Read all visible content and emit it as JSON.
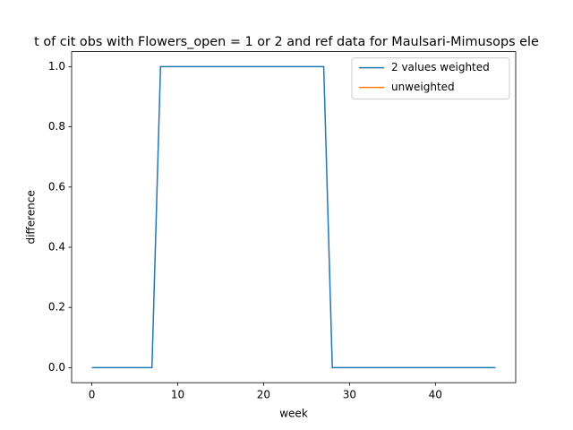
{
  "chart_data": {
    "type": "line",
    "title": "t of cit obs with Flowers_open = 1 or 2 and ref data for Maulsari-Mimusops ele",
    "x_label": "week",
    "y_label": "difference",
    "x": [
      0,
      1,
      2,
      3,
      4,
      5,
      6,
      7,
      8,
      9,
      10,
      11,
      12,
      13,
      14,
      15,
      16,
      17,
      18,
      19,
      20,
      21,
      22,
      23,
      24,
      25,
      26,
      27,
      28,
      29,
      30,
      31,
      32,
      33,
      34,
      35,
      36,
      37,
      38,
      39,
      40,
      41,
      42,
      43,
      44,
      45,
      46,
      47
    ],
    "series": [
      {
        "name": "2 values weighted",
        "color": "#1f77b4",
        "values": [
          0,
          0,
          0,
          0,
          0,
          0,
          0,
          0,
          1,
          1,
          1,
          1,
          1,
          1,
          1,
          1,
          1,
          1,
          1,
          1,
          1,
          1,
          1,
          1,
          1,
          1,
          1,
          1,
          0,
          0,
          0,
          0,
          0,
          0,
          0,
          0,
          0,
          0,
          0,
          0,
          0,
          0,
          0,
          0,
          0,
          0,
          0,
          0
        ]
      },
      {
        "name": "unweighted",
        "color": "#ff7f0e",
        "values": [
          null,
          null,
          null,
          null,
          null,
          null,
          null,
          null,
          null,
          null,
          null,
          null,
          null,
          null,
          null,
          null,
          null,
          null,
          null,
          null,
          null,
          null,
          null,
          null,
          null,
          null,
          null,
          null,
          null,
          null,
          null,
          null,
          null,
          null,
          null,
          null,
          null,
          null,
          null,
          null,
          null,
          null,
          null,
          null,
          null,
          null,
          null,
          null
        ]
      }
    ],
    "xlim": [
      -2.35,
      49.35
    ],
    "xticks": [
      0,
      10,
      20,
      30,
      40
    ],
    "ylim": [
      -0.05,
      1.05
    ],
    "yticks": [
      {
        "value": 0,
        "label": "0.0"
      },
      0.2,
      0.4,
      0.6,
      0.8,
      {
        "value": 1,
        "label": "1.0"
      }
    ],
    "legend": "upper right"
  }
}
